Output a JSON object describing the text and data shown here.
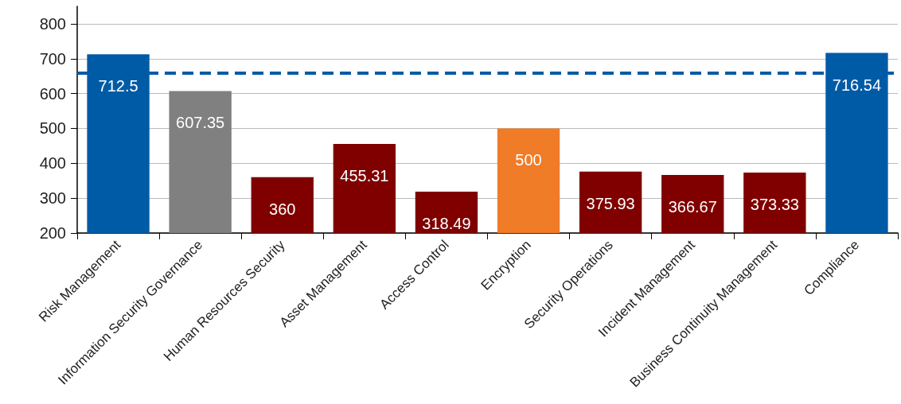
{
  "chart_data": {
    "type": "bar",
    "categories": [
      "Risk Management",
      "Information Security Governance",
      "Human Resources Security",
      "Asset Management",
      "Access Control",
      "Encryption",
      "Security Operations",
      "Incident Management",
      "Business Continuity Management",
      "Compliance"
    ],
    "values": [
      712.5,
      607.35,
      360,
      455.31,
      318.49,
      500,
      375.93,
      366.67,
      373.33,
      716.54
    ],
    "colors": [
      "#005ba6",
      "#808080",
      "#800000",
      "#800000",
      "#800000",
      "#f07c28",
      "#800000",
      "#800000",
      "#800000",
      "#005ba6"
    ],
    "ylim": [
      200,
      850
    ],
    "yticks": [
      200,
      300,
      400,
      500,
      600,
      700,
      800
    ],
    "grid": "y",
    "data_labels": true,
    "ref_lines": [
      {
        "axis": "y",
        "value": 660,
        "color": "#005ba6",
        "line_style": "dashed"
      }
    ]
  }
}
